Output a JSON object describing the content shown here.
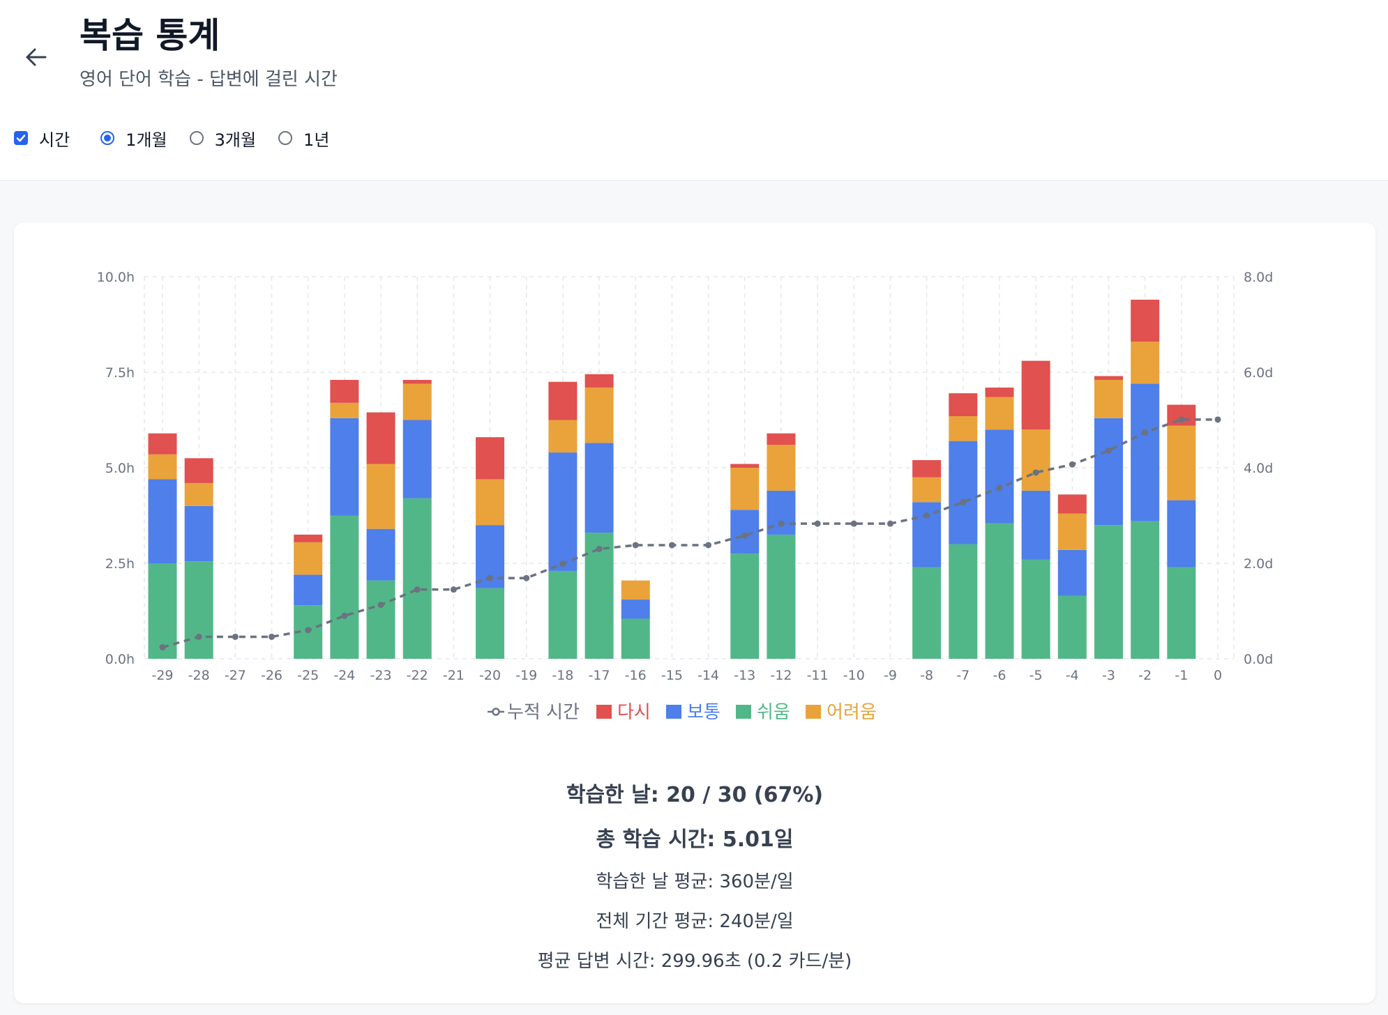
{
  "header": {
    "title": "복습 통계",
    "subtitle": "영어 단어 학습 - 답변에 걸린 시간"
  },
  "controls": {
    "time_checkbox_label": "시간",
    "range_options": [
      "1개월",
      "3개월",
      "1년"
    ],
    "selected_range": "1개월"
  },
  "chart_data": {
    "type": "bar",
    "stacked": true,
    "categories": [
      "-29",
      "-28",
      "-27",
      "-26",
      "-25",
      "-24",
      "-23",
      "-22",
      "-21",
      "-20",
      "-19",
      "-18",
      "-17",
      "-16",
      "-15",
      "-14",
      "-13",
      "-12",
      "-11",
      "-10",
      "-9",
      "-8",
      "-7",
      "-6",
      "-5",
      "-4",
      "-3",
      "-2",
      "-1",
      "0"
    ],
    "y_left_ticks": [
      "0.0h",
      "2.5h",
      "5.0h",
      "7.5h",
      "10.0h"
    ],
    "y_right_ticks": [
      "0.0d",
      "2.0d",
      "4.0d",
      "6.0d",
      "8.0d"
    ],
    "ylim_left": [
      0,
      10
    ],
    "ylim_right": [
      0,
      8
    ],
    "series": [
      {
        "name": "쉬움",
        "color": "#52b788",
        "values": [
          2.5,
          2.55,
          0,
          0,
          1.4,
          3.75,
          2.05,
          4.2,
          0,
          1.85,
          0,
          2.3,
          3.3,
          1.05,
          0,
          0,
          2.75,
          3.25,
          0,
          0,
          0,
          2.4,
          3.0,
          3.55,
          2.6,
          1.65,
          3.5,
          3.6,
          2.4,
          0
        ]
      },
      {
        "name": "보통",
        "color": "#4e7fea",
        "values": [
          2.2,
          1.45,
          0,
          0,
          0.8,
          2.55,
          1.35,
          2.05,
          0,
          1.65,
          0,
          3.1,
          2.35,
          0.5,
          0,
          0,
          1.15,
          1.15,
          0,
          0,
          0,
          1.7,
          2.7,
          2.45,
          1.8,
          1.2,
          2.8,
          3.6,
          1.75,
          0
        ]
      },
      {
        "name": "어려움",
        "color": "#e9a33a",
        "values": [
          0.65,
          0.6,
          0,
          0,
          0.85,
          0.4,
          1.7,
          0.95,
          0,
          1.2,
          0,
          0.85,
          1.45,
          0.5,
          0,
          0,
          1.1,
          1.2,
          0,
          0,
          0,
          0.65,
          0.65,
          0.85,
          1.6,
          0.95,
          1.0,
          1.1,
          1.95,
          0
        ]
      },
      {
        "name": "다시",
        "color": "#e0514f",
        "values": [
          0.55,
          0.65,
          0,
          0,
          0.2,
          0.6,
          1.35,
          0.1,
          0,
          1.1,
          0,
          1.0,
          0.35,
          0,
          0,
          0,
          0.1,
          0.3,
          0,
          0,
          0,
          0.45,
          0.6,
          0.25,
          1.8,
          0.5,
          0.1,
          1.1,
          0.55,
          0
        ]
      }
    ],
    "line": {
      "name": "누적 시간",
      "color": "#6b7280",
      "axis": "right",
      "values": [
        0.24,
        0.46,
        0.46,
        0.46,
        0.6,
        0.9,
        1.13,
        1.45,
        1.45,
        1.69,
        1.69,
        1.99,
        2.3,
        2.38,
        2.38,
        2.38,
        2.58,
        2.83,
        2.83,
        2.83,
        2.83,
        3.0,
        3.28,
        3.58,
        3.9,
        4.07,
        4.36,
        4.74,
        5.01,
        5.01
      ]
    },
    "legend": [
      "누적 시간",
      "다시",
      "보통",
      "쉬움",
      "어려움"
    ],
    "legend_position": "bottom"
  },
  "stats": {
    "days_studied": "학습한 날: 20 / 30 (67%)",
    "total_time": "총 학습 시간: 5.01일",
    "avg_studied_days": "학습한 날 평균: 360분/일",
    "avg_period": "전체 기간 평균: 240분/일",
    "avg_answer": "평균 답변 시간: 299.96초 (0.2 카드/분)"
  }
}
